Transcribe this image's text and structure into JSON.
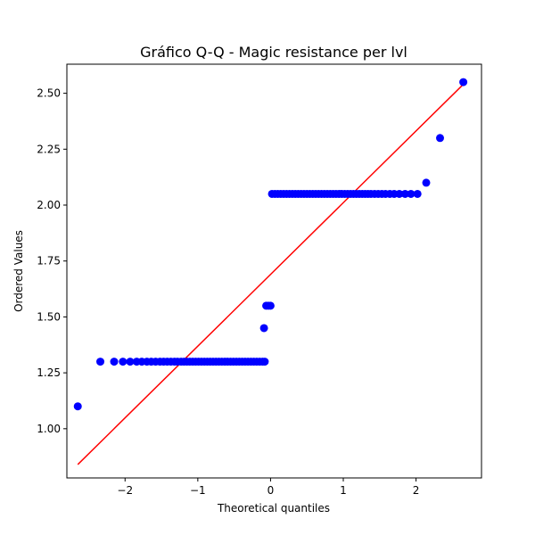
{
  "chart_data": {
    "type": "scatter",
    "title": "Gráfico Q-Q - Magic resistance per lvl",
    "xlabel": "Theoretical quantiles",
    "ylabel": "Ordered Values",
    "xlim": [
      -2.8,
      2.9
    ],
    "ylim": [
      0.78,
      2.63
    ],
    "xticks": [
      -2,
      -1,
      0,
      1,
      2
    ],
    "xtick_labels": [
      "−2",
      "−1",
      "0",
      "1",
      "2"
    ],
    "yticks": [
      1.0,
      1.25,
      1.5,
      1.75,
      2.0,
      2.25,
      2.5
    ],
    "ytick_labels": [
      "1.00",
      "1.25",
      "1.50",
      "1.75",
      "2.00",
      "2.25",
      "2.50"
    ],
    "grid": false,
    "colors": {
      "points": "#0000ff",
      "fit_line": "#ff0000"
    },
    "points": [
      [
        -2.65,
        1.1
      ],
      [
        -2.34,
        1.3
      ],
      [
        -2.15,
        1.3
      ],
      [
        -2.03,
        1.3
      ],
      [
        -1.93,
        1.3
      ],
      [
        -1.84,
        1.3
      ],
      [
        -1.77,
        1.3
      ],
      [
        -1.7,
        1.3
      ],
      [
        -1.64,
        1.3
      ],
      [
        -1.58,
        1.3
      ],
      [
        -1.52,
        1.3
      ],
      [
        -1.47,
        1.3
      ],
      [
        -1.42,
        1.3
      ],
      [
        -1.37,
        1.3
      ],
      [
        -1.32,
        1.3
      ],
      [
        -1.28,
        1.3
      ],
      [
        -1.23,
        1.3
      ],
      [
        -1.19,
        1.3
      ],
      [
        -1.15,
        1.3
      ],
      [
        -1.11,
        1.3
      ],
      [
        -1.07,
        1.3
      ],
      [
        -1.03,
        1.3
      ],
      [
        -0.99,
        1.3
      ],
      [
        -0.95,
        1.3
      ],
      [
        -0.91,
        1.3
      ],
      [
        -0.87,
        1.3
      ],
      [
        -0.83,
        1.3
      ],
      [
        -0.79,
        1.3
      ],
      [
        -0.75,
        1.3
      ],
      [
        -0.71,
        1.3
      ],
      [
        -0.67,
        1.3
      ],
      [
        -0.63,
        1.3
      ],
      [
        -0.59,
        1.3
      ],
      [
        -0.55,
        1.3
      ],
      [
        -0.51,
        1.3
      ],
      [
        -0.47,
        1.3
      ],
      [
        -0.43,
        1.3
      ],
      [
        -0.39,
        1.3
      ],
      [
        -0.35,
        1.3
      ],
      [
        -0.31,
        1.3
      ],
      [
        -0.27,
        1.3
      ],
      [
        -0.23,
        1.3
      ],
      [
        -0.19,
        1.3
      ],
      [
        -0.15,
        1.3
      ],
      [
        -0.11,
        1.3
      ],
      [
        -0.08,
        1.3
      ],
      [
        -0.09,
        1.45
      ],
      [
        -0.06,
        1.55
      ],
      [
        -0.03,
        1.55
      ],
      [
        0.0,
        1.55
      ],
      [
        0.02,
        2.05
      ],
      [
        0.06,
        2.05
      ],
      [
        0.1,
        2.05
      ],
      [
        0.14,
        2.05
      ],
      [
        0.18,
        2.05
      ],
      [
        0.22,
        2.05
      ],
      [
        0.26,
        2.05
      ],
      [
        0.3,
        2.05
      ],
      [
        0.34,
        2.05
      ],
      [
        0.38,
        2.05
      ],
      [
        0.42,
        2.05
      ],
      [
        0.46,
        2.05
      ],
      [
        0.5,
        2.05
      ],
      [
        0.54,
        2.05
      ],
      [
        0.58,
        2.05
      ],
      [
        0.62,
        2.05
      ],
      [
        0.66,
        2.05
      ],
      [
        0.7,
        2.05
      ],
      [
        0.74,
        2.05
      ],
      [
        0.78,
        2.05
      ],
      [
        0.82,
        2.05
      ],
      [
        0.86,
        2.05
      ],
      [
        0.9,
        2.05
      ],
      [
        0.94,
        2.05
      ],
      [
        0.98,
        2.05
      ],
      [
        1.02,
        2.05
      ],
      [
        1.06,
        2.05
      ],
      [
        1.1,
        2.05
      ],
      [
        1.14,
        2.05
      ],
      [
        1.18,
        2.05
      ],
      [
        1.22,
        2.05
      ],
      [
        1.26,
        2.05
      ],
      [
        1.3,
        2.05
      ],
      [
        1.34,
        2.05
      ],
      [
        1.38,
        2.05
      ],
      [
        1.43,
        2.05
      ],
      [
        1.48,
        2.05
      ],
      [
        1.53,
        2.05
      ],
      [
        1.58,
        2.05
      ],
      [
        1.64,
        2.05
      ],
      [
        1.7,
        2.05
      ],
      [
        1.77,
        2.05
      ],
      [
        1.85,
        2.05
      ],
      [
        1.93,
        2.05
      ],
      [
        2.02,
        2.05
      ],
      [
        2.14,
        2.1
      ],
      [
        2.33,
        2.3
      ],
      [
        2.65,
        2.55
      ]
    ],
    "fit_line": {
      "x": [
        -2.65,
        2.65
      ],
      "y": [
        0.84,
        2.54
      ]
    }
  }
}
